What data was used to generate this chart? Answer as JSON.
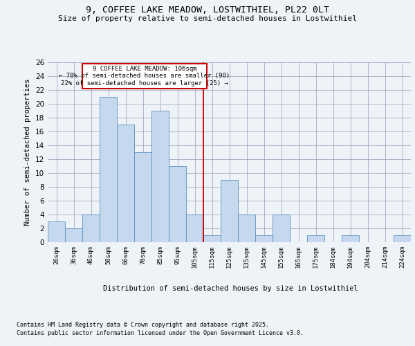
{
  "title1": "9, COFFEE LAKE MEADOW, LOSTWITHIEL, PL22 0LT",
  "title2": "Size of property relative to semi-detached houses in Lostwithiel",
  "xlabel": "Distribution of semi-detached houses by size in Lostwithiel",
  "ylabel": "Number of semi-detached properties",
  "categories": [
    "26sqm",
    "36sqm",
    "46sqm",
    "56sqm",
    "66sqm",
    "76sqm",
    "85sqm",
    "95sqm",
    "105sqm",
    "115sqm",
    "125sqm",
    "135sqm",
    "145sqm",
    "155sqm",
    "165sqm",
    "175sqm",
    "184sqm",
    "194sqm",
    "204sqm",
    "214sqm",
    "224sqm"
  ],
  "values": [
    3,
    2,
    4,
    21,
    17,
    13,
    19,
    11,
    4,
    1,
    9,
    4,
    1,
    4,
    0,
    1,
    0,
    1,
    0,
    0,
    1
  ],
  "bar_color": "#c5d8ed",
  "bar_edge_color": "#5a8fc0",
  "vline_color": "#cc0000",
  "annotation_title": "9 COFFEE LAKE MEADOW: 106sqm",
  "annotation_line1": "← 78% of semi-detached houses are smaller (90)",
  "annotation_line2": "22% of semi-detached houses are larger (25) →",
  "annotation_box_color": "#cc0000",
  "footnote1": "Contains HM Land Registry data © Crown copyright and database right 2025.",
  "footnote2": "Contains public sector information licensed under the Open Government Licence v3.0.",
  "bg_color": "#eef3f8",
  "ylim": [
    0,
    26
  ],
  "yticks": [
    0,
    2,
    4,
    6,
    8,
    10,
    12,
    14,
    16,
    18,
    20,
    22,
    24,
    26
  ]
}
